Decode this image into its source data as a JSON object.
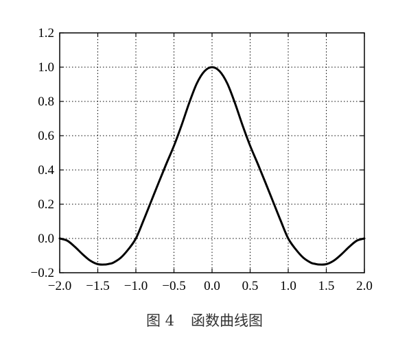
{
  "chart_data": {
    "type": "line",
    "title": "",
    "xlabel": "",
    "ylabel": "",
    "xlim": [
      -2.0,
      2.0
    ],
    "ylim": [
      -0.2,
      1.2
    ],
    "grid": true,
    "xticks": [
      -2.0,
      -1.5,
      -1.0,
      -0.5,
      0.0,
      0.5,
      1.0,
      1.5,
      2.0
    ],
    "xtick_labels": [
      "−2.0",
      "−1.5",
      "−1.0",
      "−0.5",
      "0.0",
      "0.5",
      "1.0",
      "1.5",
      "2.0"
    ],
    "yticks": [
      -0.2,
      0.0,
      0.2,
      0.4,
      0.6,
      0.8,
      1.0,
      1.2
    ],
    "ytick_labels": [
      "−0.2",
      "0.0",
      "0.2",
      "0.4",
      "0.6",
      "0.8",
      "1.0",
      "1.2"
    ],
    "series": [
      {
        "color": "#000000",
        "x": [
          -2.0,
          -1.9,
          -1.8,
          -1.7,
          -1.6,
          -1.5,
          -1.4,
          -1.35,
          -1.3,
          -1.2,
          -1.1,
          -1.0,
          -0.9,
          -0.8,
          -0.7,
          -0.6,
          -0.5,
          -0.4,
          -0.3,
          -0.2,
          -0.1,
          0.0,
          0.1,
          0.2,
          0.3,
          0.4,
          0.5,
          0.6,
          0.7,
          0.8,
          0.9,
          1.0,
          1.1,
          1.2,
          1.3,
          1.35,
          1.4,
          1.5,
          1.6,
          1.7,
          1.8,
          1.9,
          2.0
        ],
        "y": [
          0.0,
          -0.013,
          -0.049,
          -0.092,
          -0.129,
          -0.15,
          -0.152,
          -0.148,
          -0.142,
          -0.113,
          -0.064,
          0.0,
          0.105,
          0.216,
          0.327,
          0.436,
          0.541,
          0.661,
          0.791,
          0.905,
          0.976,
          1.0,
          0.976,
          0.905,
          0.791,
          0.661,
          0.541,
          0.436,
          0.327,
          0.216,
          0.105,
          0.0,
          -0.064,
          -0.113,
          -0.142,
          -0.148,
          -0.152,
          -0.15,
          -0.129,
          -0.092,
          -0.049,
          -0.013,
          0.0
        ]
      }
    ]
  },
  "caption": {
    "figure_label": "图 4",
    "title": "函数曲线图"
  }
}
